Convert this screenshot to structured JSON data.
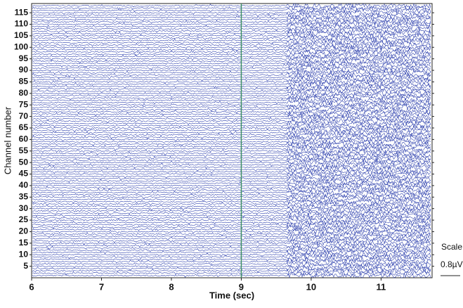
{
  "chart_data": {
    "type": "traces",
    "xlabel": "Time (sec)",
    "ylabel": "Channel number",
    "xlim": [
      6,
      11.73
    ],
    "xticks": [
      6,
      7,
      8,
      9,
      10,
      11
    ],
    "ylim": [
      119,
      0
    ],
    "yticks": [
      5,
      10,
      15,
      20,
      25,
      30,
      35,
      40,
      45,
      50,
      55,
      60,
      65,
      70,
      75,
      80,
      85,
      90,
      95,
      100,
      105,
      110,
      115
    ],
    "channels": 118,
    "marker_time": 9,
    "burst_start": 9.65,
    "trace_color": "#3547b0",
    "marker_color": "#3f8f66",
    "scale_title": "Scale",
    "scale_label": "0.8µV"
  }
}
